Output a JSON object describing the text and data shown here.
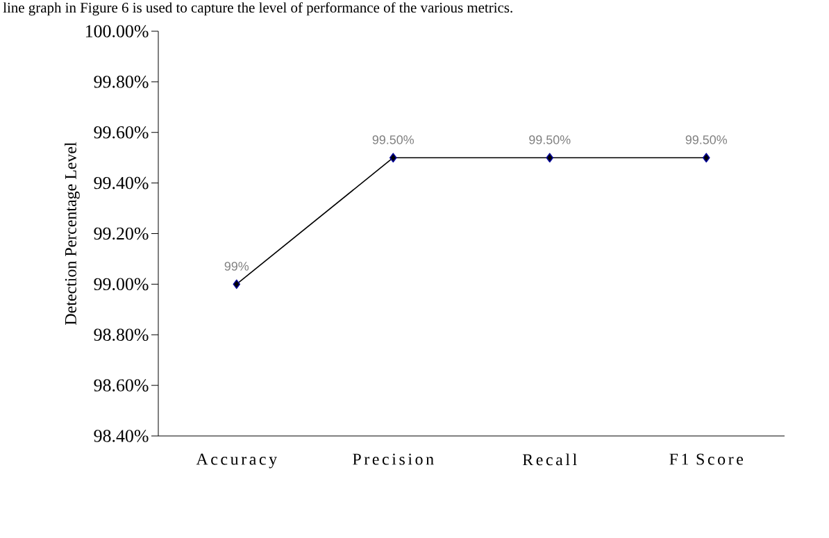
{
  "chart_data": {
    "type": "line",
    "ylabel": "Detection Percentage Level",
    "annotations": [
      "line graph in Figure 6 is used to capture the level of performance of the various metrics."
    ],
    "categories": [
      "Accuracy",
      "Precision",
      "Recall",
      "F1 Score"
    ],
    "values": [
      99.0,
      99.5,
      99.5,
      99.5
    ],
    "value_labels": [
      "99%",
      "99.50%",
      "99.50%",
      "99.50%"
    ],
    "color": "#000000",
    "marker": "diamond",
    "line_style": "solid",
    "ylim": [
      98.4,
      100.0
    ],
    "yticks": [
      {
        "value": 98.4,
        "label": "98.40%"
      },
      {
        "value": 98.6,
        "label": "98.60%"
      },
      {
        "value": 98.8,
        "label": "98.80%"
      },
      {
        "value": 99.0,
        "label": "99.00%"
      },
      {
        "value": 99.2,
        "label": "99.20%"
      },
      {
        "value": 99.4,
        "label": "99.40%"
      },
      {
        "value": 99.6,
        "label": "99.60%"
      },
      {
        "value": 99.8,
        "label": "99.80%"
      },
      {
        "value": 100.0,
        "label": "100.00%"
      }
    ],
    "grid": false
  }
}
